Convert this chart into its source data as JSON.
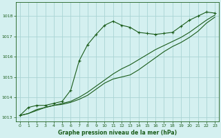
{
  "xlabel": "Graphe pression niveau de la mer (hPa)",
  "xlim": [
    -0.5,
    23.5
  ],
  "ylim": [
    1012.8,
    1018.7
  ],
  "yticks": [
    1013,
    1014,
    1015,
    1016,
    1017,
    1018
  ],
  "xticks": [
    0,
    1,
    2,
    3,
    4,
    5,
    6,
    7,
    8,
    9,
    10,
    11,
    12,
    13,
    14,
    15,
    16,
    17,
    18,
    19,
    20,
    21,
    22,
    23
  ],
  "bg_color": "#d4f0f0",
  "grid_color": "#aad4d4",
  "line_color": "#1a5c1a",
  "line1_x": [
    0,
    1,
    2,
    3,
    4,
    5,
    6,
    7,
    8,
    9,
    10,
    11,
    12,
    13,
    14,
    15,
    16,
    17,
    18,
    19,
    20,
    21,
    22,
    23
  ],
  "line1_y": [
    1013.1,
    1013.5,
    1013.6,
    1013.6,
    1013.7,
    1013.8,
    1014.35,
    1015.8,
    1016.6,
    1017.1,
    1017.55,
    1017.75,
    1017.55,
    1017.45,
    1017.2,
    1017.15,
    1017.1,
    1017.15,
    1017.2,
    1017.5,
    1017.8,
    1018.0,
    1018.2,
    1018.15
  ],
  "line2_x": [
    0,
    1,
    2,
    3,
    4,
    5,
    6,
    7,
    8,
    9,
    10,
    11,
    12,
    13,
    14,
    15,
    16,
    17,
    18,
    19,
    20,
    21,
    22,
    23
  ],
  "line2_y": [
    1013.1,
    1013.2,
    1013.4,
    1013.5,
    1013.6,
    1013.7,
    1013.8,
    1014.0,
    1014.25,
    1014.55,
    1014.85,
    1015.15,
    1015.4,
    1015.6,
    1015.85,
    1016.1,
    1016.35,
    1016.55,
    1016.75,
    1016.95,
    1017.2,
    1017.5,
    1017.8,
    1018.05
  ],
  "line3_x": [
    0,
    1,
    2,
    3,
    4,
    5,
    6,
    7,
    8,
    9,
    10,
    11,
    12,
    13,
    14,
    15,
    16,
    17,
    18,
    19,
    20,
    21,
    22,
    23
  ],
  "line3_y": [
    1013.1,
    1013.2,
    1013.35,
    1013.5,
    1013.6,
    1013.65,
    1013.75,
    1013.9,
    1014.1,
    1014.4,
    1014.7,
    1014.9,
    1015.0,
    1015.1,
    1015.35,
    1015.65,
    1015.95,
    1016.25,
    1016.5,
    1016.7,
    1016.95,
    1017.25,
    1017.65,
    1017.95
  ]
}
